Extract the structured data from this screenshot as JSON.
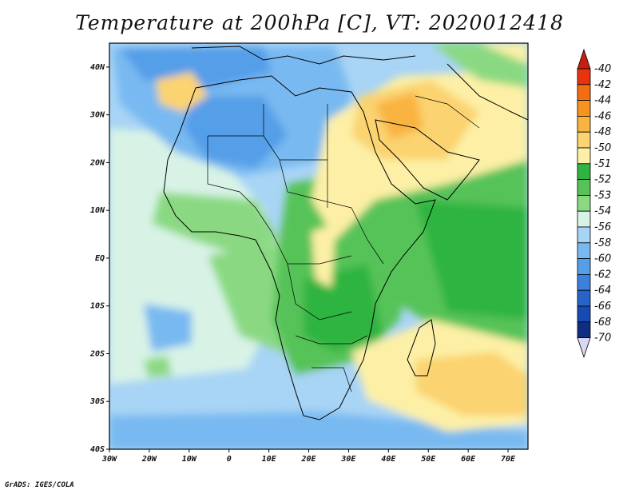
{
  "title": "Temperature at 200hPa [C], VT: 2020012418",
  "credit": "GrADS: IGES/COLA",
  "map": {
    "x_ticks": [
      "30W",
      "20W",
      "10W",
      "0",
      "10E",
      "20E",
      "30E",
      "40E",
      "50E",
      "60E",
      "70E"
    ],
    "y_ticks": [
      "40N",
      "30N",
      "20N",
      "10N",
      "EQ",
      "10S",
      "20S",
      "30S",
      "40S"
    ],
    "lon_range": [
      -30,
      75
    ],
    "lat_range": [
      -40,
      45
    ]
  },
  "colorbar": {
    "labels": [
      "-40",
      "-42",
      "-44",
      "-46",
      "-48",
      "-50",
      "-51",
      "-52",
      "-53",
      "-54",
      "-56",
      "-58",
      "-60",
      "-62",
      "-64",
      "-66",
      "-68",
      "-70"
    ],
    "colors": [
      "#e8330e",
      "#f46d12",
      "#f7931e",
      "#f9b340",
      "#fbd370",
      "#fdf0a6",
      "#2fb441",
      "#56c359",
      "#8ad982",
      "#d8f3e6",
      "#a8d4f5",
      "#78b9f1",
      "#559ee8",
      "#3c7fdc",
      "#2863cc",
      "#174ab3",
      "#0e2e82"
    ]
  }
}
